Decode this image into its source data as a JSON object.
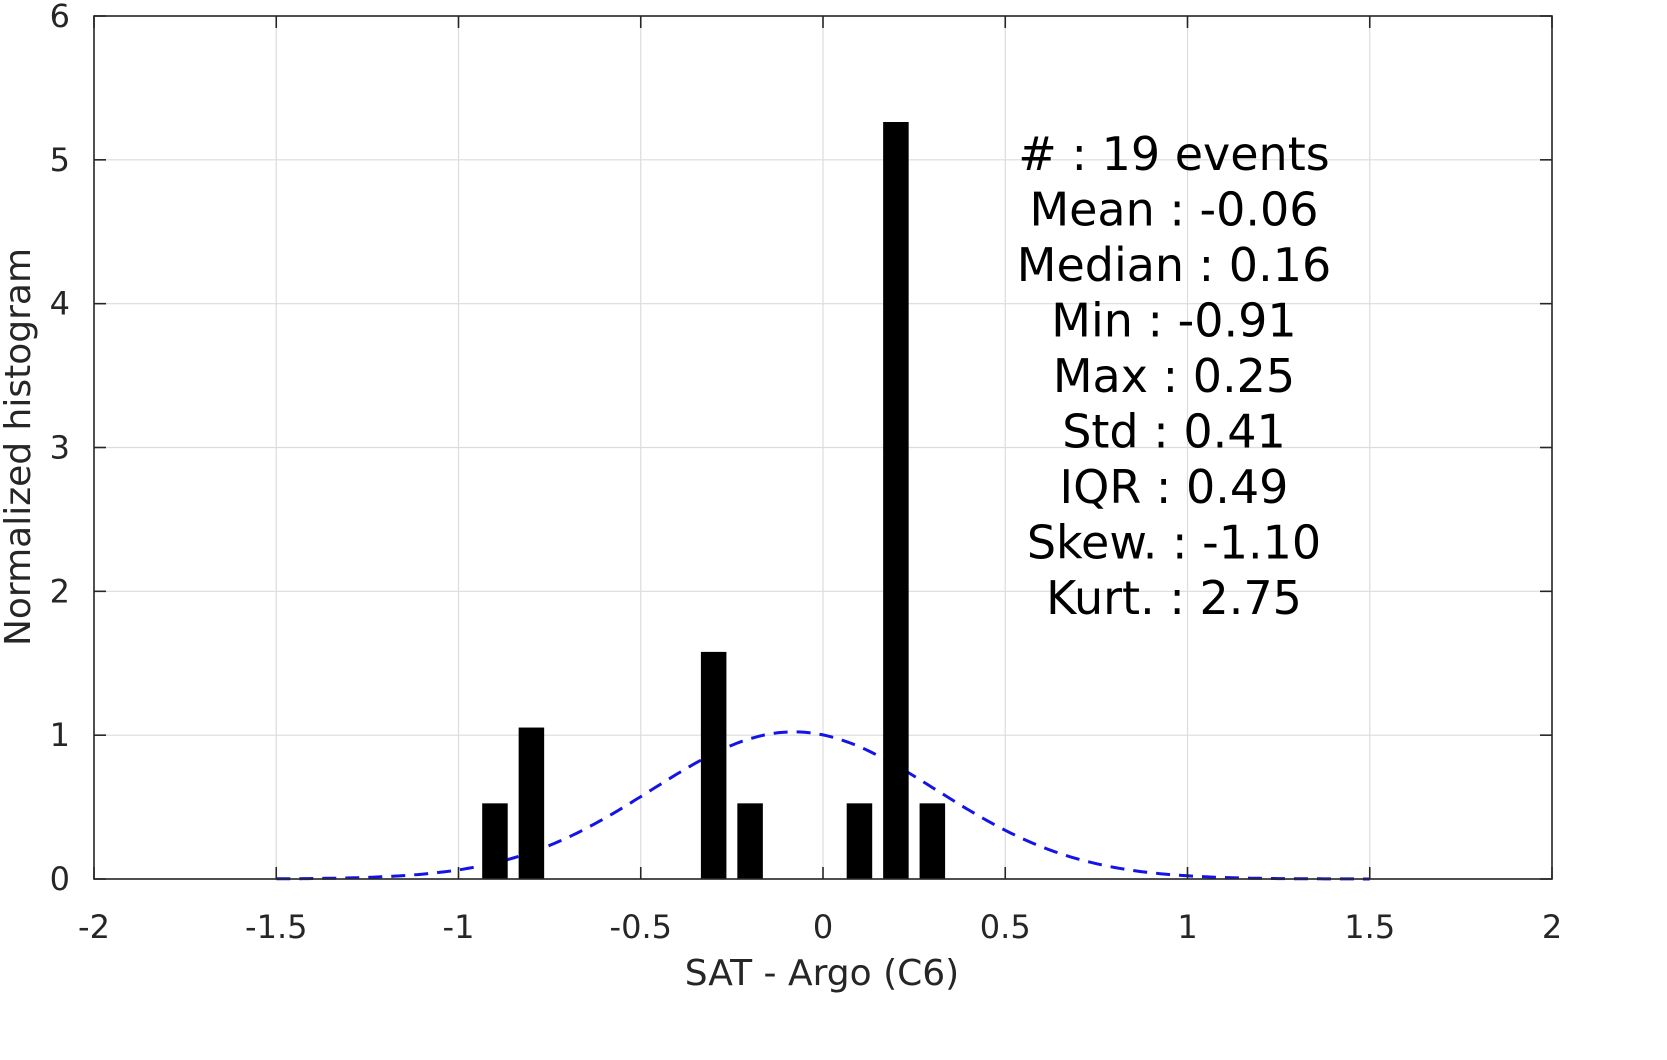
{
  "chart_data": {
    "type": "bar",
    "xlabel": "SAT - Argo (C6)",
    "ylabel": "Normalized histogram",
    "xlim": [
      -2,
      2
    ],
    "ylim": [
      0,
      6
    ],
    "xticks": [
      -2,
      -1.5,
      -1,
      -0.5,
      0,
      0.5,
      1,
      1.5,
      2
    ],
    "xtick_labels": [
      "-2",
      "-1.5",
      "-1",
      "-0.5",
      "0",
      "0.5",
      "1",
      "1.5",
      "2"
    ],
    "yticks": [
      0,
      1,
      2,
      3,
      4,
      5,
      6
    ],
    "ytick_labels": [
      "0",
      "1",
      "2",
      "3",
      "4",
      "5",
      "6"
    ],
    "grid": true,
    "bar_width": 0.07,
    "bars": [
      {
        "x": -0.9,
        "value": 0.526
      },
      {
        "x": -0.8,
        "value": 1.053
      },
      {
        "x": -0.3,
        "value": 1.579
      },
      {
        "x": -0.2,
        "value": 0.526
      },
      {
        "x": 0.1,
        "value": 0.526
      },
      {
        "x": 0.2,
        "value": 5.263
      },
      {
        "x": 0.3,
        "value": 0.526
      }
    ],
    "bar_color": "#000000",
    "fit_curve": {
      "kind": "gaussian",
      "mean": -0.08,
      "std": 0.39,
      "x_range": [
        -1.5,
        1.5
      ],
      "color": "#1414e6",
      "style": "dashed"
    },
    "stats": [
      "#  : 19 events",
      "Mean : -0.06",
      "Median : 0.16",
      "Min : -0.91",
      "Max : 0.25",
      "Std : 0.41",
      "IQR : 0.49",
      "Skew. : -1.10",
      "Kurt. : 2.75"
    ]
  }
}
